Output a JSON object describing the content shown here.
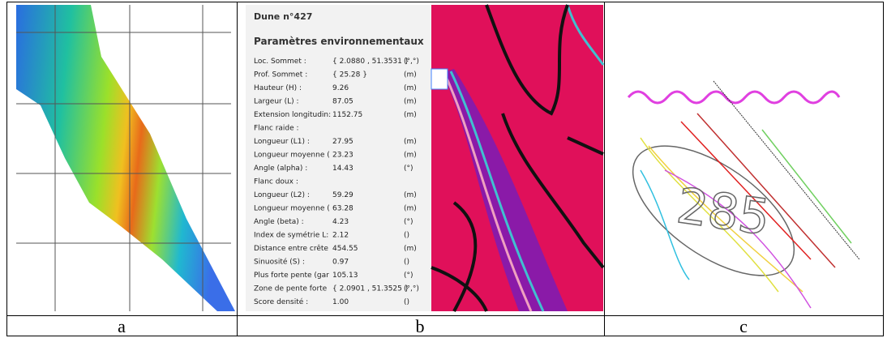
{
  "panels": [
    {
      "label": "a"
    },
    {
      "label": "b",
      "window": {
        "title": "Dune n°427",
        "section": "Paramètres environnementaux",
        "rows": [
          [
            "Loc. Sommet :",
            "{ 2.0880 , 51.3531 }",
            "(°,°)"
          ],
          [
            "Prof. Sommet :",
            "{ 25.28 }",
            "(m)"
          ],
          [
            "Hauteur (H) :",
            "9.26",
            "(m)"
          ],
          [
            "Largeur (L) :",
            "87.05",
            "(m)"
          ],
          [
            "Extension longitudin:",
            "1152.75",
            "(m)"
          ],
          [
            "Flanc raide :"
          ],
          [
            "Longueur (L1) :",
            "27.95",
            "(m)"
          ],
          [
            "Longueur moyenne (",
            "23.23",
            "(m)"
          ],
          [
            "Angle (alpha) :",
            "14.43",
            "(°)"
          ],
          [
            "Flanc doux :"
          ],
          [
            "Longueur (L2) :",
            "59.29",
            "(m)"
          ],
          [
            "Longueur moyenne (",
            "63.28",
            "(m)"
          ],
          [
            "Angle (beta) :",
            "4.23",
            "(°)"
          ],
          [
            "Index de symétrie L:",
            "2.12",
            "()"
          ],
          [
            "Distance entre crête",
            "454.55",
            "(m)"
          ],
          [
            "Sinuosité (S) :",
            "0.97",
            "()"
          ],
          [
            "Plus forte pente (gar",
            "105.13",
            "(°)"
          ],
          [
            "Zone de pente forte",
            "{ 2.0901 , 51.3525 }",
            "(°,°)"
          ],
          [
            "Score densité :",
            "1.00",
            "()"
          ]
        ]
      }
    },
    {
      "label": "c",
      "annotation": "285"
    }
  ]
}
